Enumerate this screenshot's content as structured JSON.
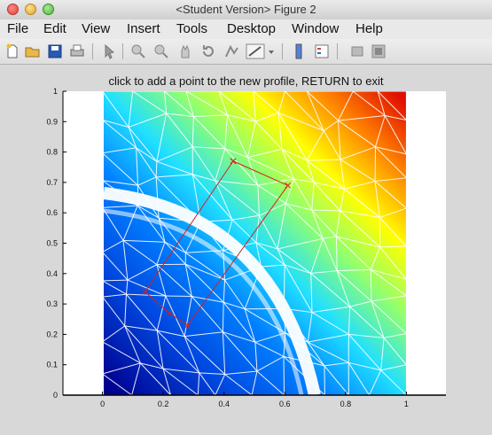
{
  "window": {
    "title": "<Student Version> Figure 2"
  },
  "menu": {
    "items": [
      "File",
      "Edit",
      "View",
      "Insert",
      "Tools",
      "Desktop",
      "Window",
      "Help"
    ]
  },
  "toolbar": {
    "icons": [
      "new-figure-icon",
      "open-file-icon",
      "save-icon",
      "print-icon",
      "edit-plot-arrow-icon",
      "zoom-in-icon",
      "zoom-out-icon",
      "pan-hand-icon",
      "rotate-3d-icon",
      "data-cursor-icon",
      "brush-icon",
      "dropdown-arrow-icon",
      "colorbar-icon",
      "legend-icon",
      "hide-tools-icon",
      "show-tools-icon"
    ]
  },
  "colors": {
    "window_bg": "#d8d8d8",
    "axes_bg": "#ffffff",
    "mesh": "#ffffff",
    "profile": "#d22020"
  },
  "chart_data": {
    "type": "scatter",
    "title": "click to add a point to the new profile, RETURN to exit",
    "xlim": [
      -0.13,
      1.13
    ],
    "ylim": [
      0,
      1
    ],
    "xticks": [
      "0",
      "0.2",
      "0.4",
      "0.6",
      "0.8",
      "1"
    ],
    "yticks": [
      "0",
      "0.1",
      "0.2",
      "0.3",
      "0.4",
      "0.5",
      "0.6",
      "0.7",
      "0.8",
      "0.9",
      "1"
    ],
    "colormap": "jet",
    "grid": false,
    "profile": {
      "name": "new profile",
      "x": [
        0.43,
        0.61,
        0.28,
        0.22,
        0.14,
        0.43
      ],
      "y": [
        0.77,
        0.69,
        0.23,
        0.27,
        0.34,
        0.77
      ]
    }
  }
}
